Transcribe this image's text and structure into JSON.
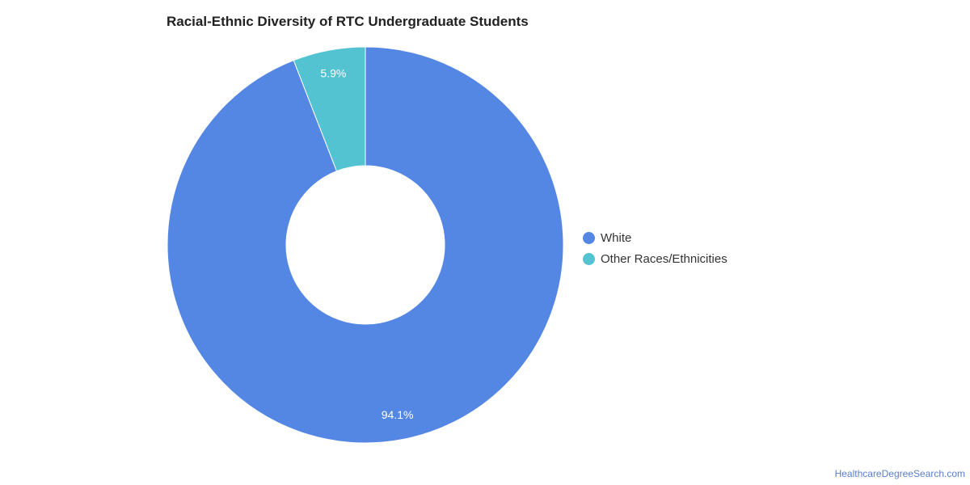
{
  "chart_data": {
    "type": "pie",
    "title": "Racial-Ethnic Diversity of RTC Undergraduate Students",
    "slices": [
      {
        "name": "White",
        "value": 94.1,
        "label": "94.1%",
        "color": "#5486e3"
      },
      {
        "name": "Other Races/Ethnicities",
        "value": 5.9,
        "label": "5.9%",
        "color": "#53c3d1"
      }
    ],
    "donut": true,
    "legend_position": "right"
  },
  "source": {
    "label": "HealthcareDegreeSearch.com"
  }
}
